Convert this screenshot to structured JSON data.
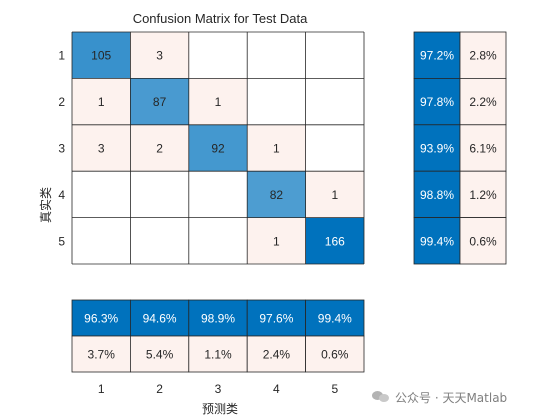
{
  "chart_data": {
    "type": "heatmap",
    "title": "Confusion Matrix for Test Data",
    "xlabel": "预测类",
    "ylabel": "真实类",
    "classes": [
      "1",
      "2",
      "3",
      "4",
      "5"
    ],
    "matrix": [
      [
        105,
        3,
        0,
        0,
        0
      ],
      [
        1,
        87,
        1,
        0,
        0
      ],
      [
        3,
        2,
        92,
        1,
        0
      ],
      [
        0,
        0,
        0,
        82,
        1
      ],
      [
        0,
        0,
        0,
        1,
        166
      ]
    ],
    "row_summary": [
      [
        "97.2%",
        "2.8%"
      ],
      [
        "97.8%",
        "2.2%"
      ],
      [
        "93.9%",
        "6.1%"
      ],
      [
        "98.8%",
        "1.2%"
      ],
      [
        "99.4%",
        "0.6%"
      ]
    ],
    "column_summary": [
      [
        "96.3%",
        "94.6%",
        "98.9%",
        "97.6%",
        "99.4%"
      ],
      [
        "3.7%",
        "5.4%",
        "1.1%",
        "2.4%",
        "0.6%"
      ]
    ],
    "colors": {
      "correct_max": "#0072bd",
      "incorrect": "#fdf2ee",
      "empty": "#ffffff",
      "grid": "#262626",
      "summary_correct": "#0072bd",
      "summary_incorrect": "#fdf2ee"
    }
  },
  "watermark": {
    "text": "公众号 · 天天Matlab",
    "icon": "wechat-icon"
  }
}
